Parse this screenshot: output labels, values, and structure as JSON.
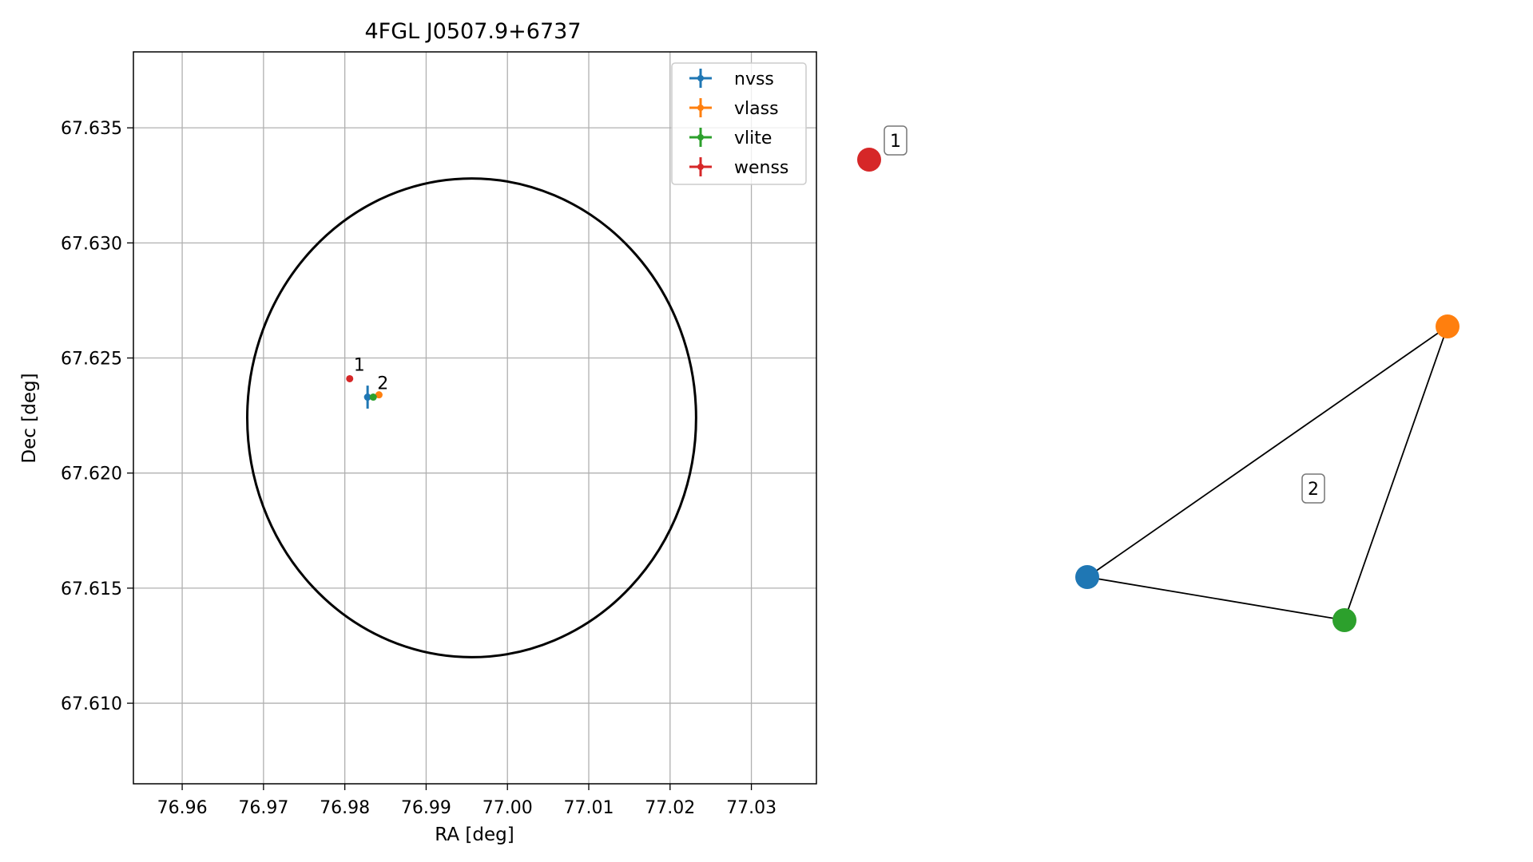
{
  "chart_data": [
    {
      "type": "scatter",
      "title": "4FGL J0507.9+6737",
      "xlabel": "RA [deg]",
      "ylabel": "Dec [deg]",
      "xlim": [
        76.954,
        77.038
      ],
      "ylim": [
        67.6065,
        67.6383
      ],
      "xticks": [
        76.96,
        76.97,
        76.98,
        76.99,
        77.0,
        77.01,
        77.02,
        77.03
      ],
      "xtick_labels": [
        "76.96",
        "76.97",
        "76.98",
        "76.99",
        "77.00",
        "77.01",
        "77.02",
        "77.03"
      ],
      "yticks": [
        67.61,
        67.615,
        67.62,
        67.625,
        67.63,
        67.635
      ],
      "ytick_labels": [
        "67.610",
        "67.615",
        "67.620",
        "67.625",
        "67.630",
        "67.635"
      ],
      "grid": true,
      "legend_position": "top-right",
      "series": [
        {
          "name": "nvss",
          "color": "#1f77b4",
          "points": [
            {
              "x": 76.9828,
              "y": 67.6233,
              "xerr": 0.0003,
              "yerr": 0.0005
            }
          ]
        },
        {
          "name": "vlass",
          "color": "#ff7f0e",
          "points": [
            {
              "x": 76.9842,
              "y": 67.6234,
              "xerr": 0.0002,
              "yerr": 0.0001
            }
          ]
        },
        {
          "name": "vlite",
          "color": "#2ca02c",
          "points": [
            {
              "x": 76.9835,
              "y": 67.6233,
              "xerr": 0.0002,
              "yerr": 0.0001
            }
          ]
        },
        {
          "name": "wenss",
          "color": "#d62728",
          "points": [
            {
              "x": 76.9806,
              "y": 67.6241,
              "xerr": 0.0,
              "yerr": 0.0
            }
          ]
        }
      ],
      "ellipse": {
        "center_x": 76.9956,
        "center_y": 67.6224,
        "semi_x": 0.0276,
        "semi_y": 0.0104,
        "color": "#000000"
      },
      "annotations": [
        {
          "text": "1",
          "x": 76.9806,
          "y": 67.6241
        },
        {
          "text": "2",
          "x": 76.9835,
          "y": 67.6233
        }
      ]
    },
    {
      "type": "graph",
      "nodes": [
        {
          "id": "wenss",
          "color": "#d62728"
        },
        {
          "id": "nvss",
          "color": "#1f77b4"
        },
        {
          "id": "vlass",
          "color": "#ff7f0e"
        },
        {
          "id": "vlite",
          "color": "#2ca02c"
        }
      ],
      "edges": [
        [
          "nvss",
          "vlass"
        ],
        [
          "vlass",
          "vlite"
        ],
        [
          "vlite",
          "nvss"
        ]
      ],
      "group_labels": [
        "1",
        "2"
      ]
    }
  ]
}
